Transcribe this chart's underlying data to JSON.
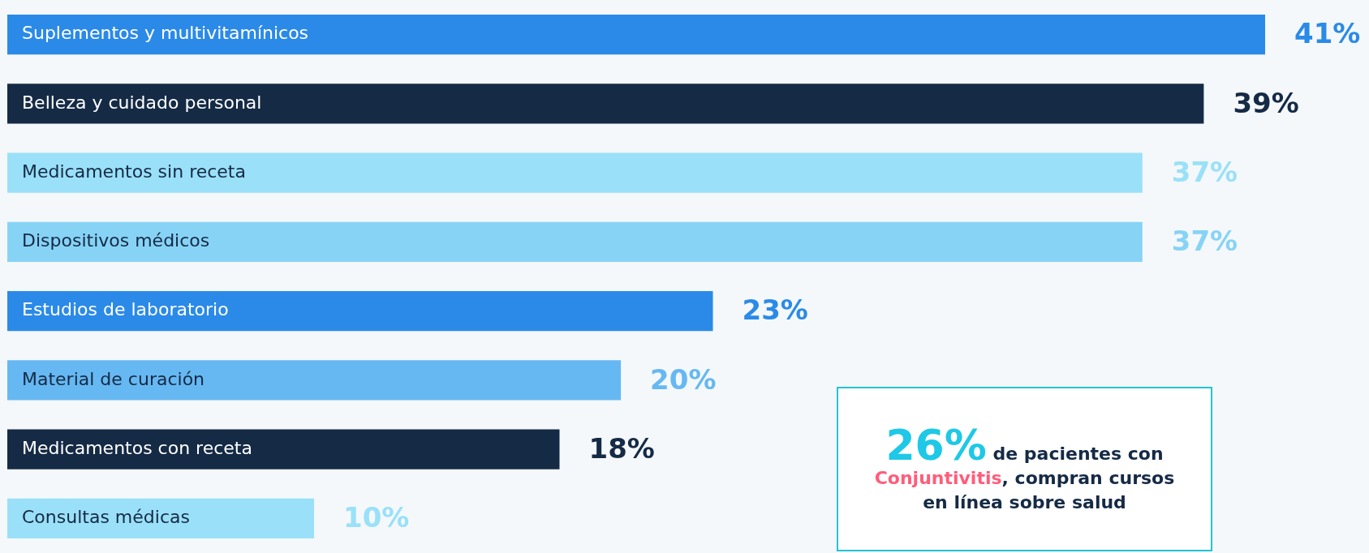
{
  "chart_data": {
    "type": "bar",
    "orientation": "horizontal",
    "categories": [
      "Suplementos y multivitamínicos",
      "Belleza y cuidado personal",
      "Medicamentos sin receta",
      "Dispositivos médicos",
      "Estudios de laboratorio",
      "Material de curación",
      "Medicamentos con receta",
      "Consultas médicas"
    ],
    "values": [
      41,
      39,
      37,
      37,
      23,
      20,
      18,
      10
    ],
    "colors": [
      "#2b8ae8",
      "#152a45",
      "#9ae0f8",
      "#87d3f6",
      "#2b8ae8",
      "#66b8f2",
      "#152a45",
      "#9ae0f8"
    ],
    "value_labels": [
      "41%",
      "39%",
      "37%",
      "37%",
      "23%",
      "20%",
      "18%",
      "10%"
    ],
    "annotations": [
      "26%",
      "de pacientes con",
      "Conjuntivitis",
      ", compran cursos en línea sobre salud"
    ]
  }
}
